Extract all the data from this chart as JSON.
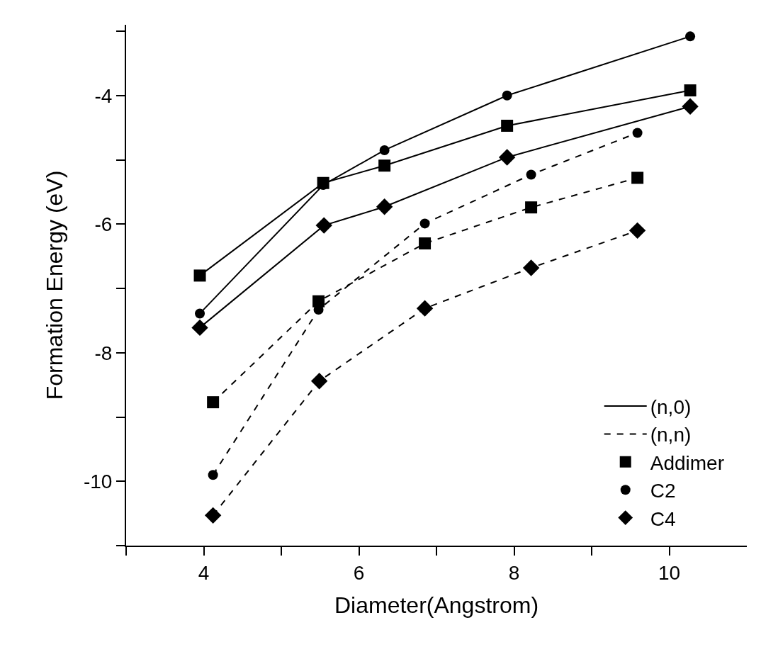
{
  "chart_data": {
    "type": "line",
    "xlabel": "Diameter(Angstrom)",
    "ylabel": "Formation Energy (eV)",
    "xlim": [
      3,
      11
    ],
    "ylim": [
      -11,
      -2.9
    ],
    "xticks": [
      {
        "value": 3,
        "label": null
      },
      4,
      {
        "value": 5,
        "label": null
      },
      6,
      {
        "value": 7,
        "label": null
      },
      8,
      {
        "value": 9,
        "label": null
      },
      10
    ],
    "yticks": [
      {
        "value": -11,
        "label": null
      },
      -10,
      {
        "value": -9,
        "label": null
      },
      -8,
      {
        "value": -7,
        "label": null
      },
      -6,
      {
        "value": -5,
        "label": null
      },
      -4,
      {
        "value": -3,
        "label": null
      }
    ],
    "legend": "bottom right",
    "series": [
      {
        "color": "#000000",
        "marker": "square",
        "line_style": "solid",
        "x": [
          3.95,
          5.54,
          6.33,
          7.91,
          10.27
        ],
        "values": [
          -6.8,
          -5.36,
          -5.09,
          -4.47,
          -3.92
        ]
      },
      {
        "color": "#000000",
        "marker": "circle",
        "line_style": "solid",
        "x": [
          3.95,
          5.54,
          6.33,
          7.91,
          10.27
        ],
        "values": [
          -7.39,
          -5.39,
          -4.85,
          -4.0,
          -3.08
        ]
      },
      {
        "color": "#000000",
        "marker": "diamond",
        "line_style": "solid",
        "x": [
          3.95,
          5.55,
          6.33,
          7.91,
          10.27
        ],
        "values": [
          -7.61,
          -6.02,
          -5.73,
          -4.96,
          -4.17
        ]
      },
      {
        "color": "#000000",
        "marker": "square",
        "line_style": "dashed",
        "x": [
          4.12,
          5.48,
          6.85,
          8.22,
          9.59
        ],
        "values": [
          -8.77,
          -7.2,
          -6.3,
          -5.74,
          -5.28
        ]
      },
      {
        "color": "#000000",
        "marker": "circle",
        "line_style": "dashed",
        "x": [
          4.12,
          5.48,
          6.85,
          8.22,
          9.59
        ],
        "values": [
          -9.9,
          -7.33,
          -5.99,
          -5.23,
          -4.58
        ]
      },
      {
        "color": "#000000",
        "marker": "diamond",
        "line_style": "dashed",
        "x": [
          4.12,
          5.49,
          6.85,
          8.22,
          9.59
        ],
        "values": [
          -10.53,
          -8.44,
          -7.31,
          -6.68,
          -6.1
        ]
      },
      {
        "name": "(n,0)",
        "color": "#000000",
        "marker": "none",
        "line_style": "solid",
        "values": [
          null
        ]
      },
      {
        "name": "(n,n)",
        "color": "#000000",
        "marker": "none",
        "line_style": "dashed",
        "values": [
          null
        ]
      },
      {
        "name": "Addimer",
        "type": "scatter",
        "color": "#000000",
        "marker": "square",
        "values": [
          null
        ]
      },
      {
        "name": "C2",
        "type": "scatter",
        "color": "#000000",
        "marker": "circle",
        "values": [
          null
        ]
      },
      {
        "name": "C4",
        "type": "scatter",
        "color": "#000000",
        "marker": "diamond",
        "values": [
          null
        ]
      }
    ]
  }
}
